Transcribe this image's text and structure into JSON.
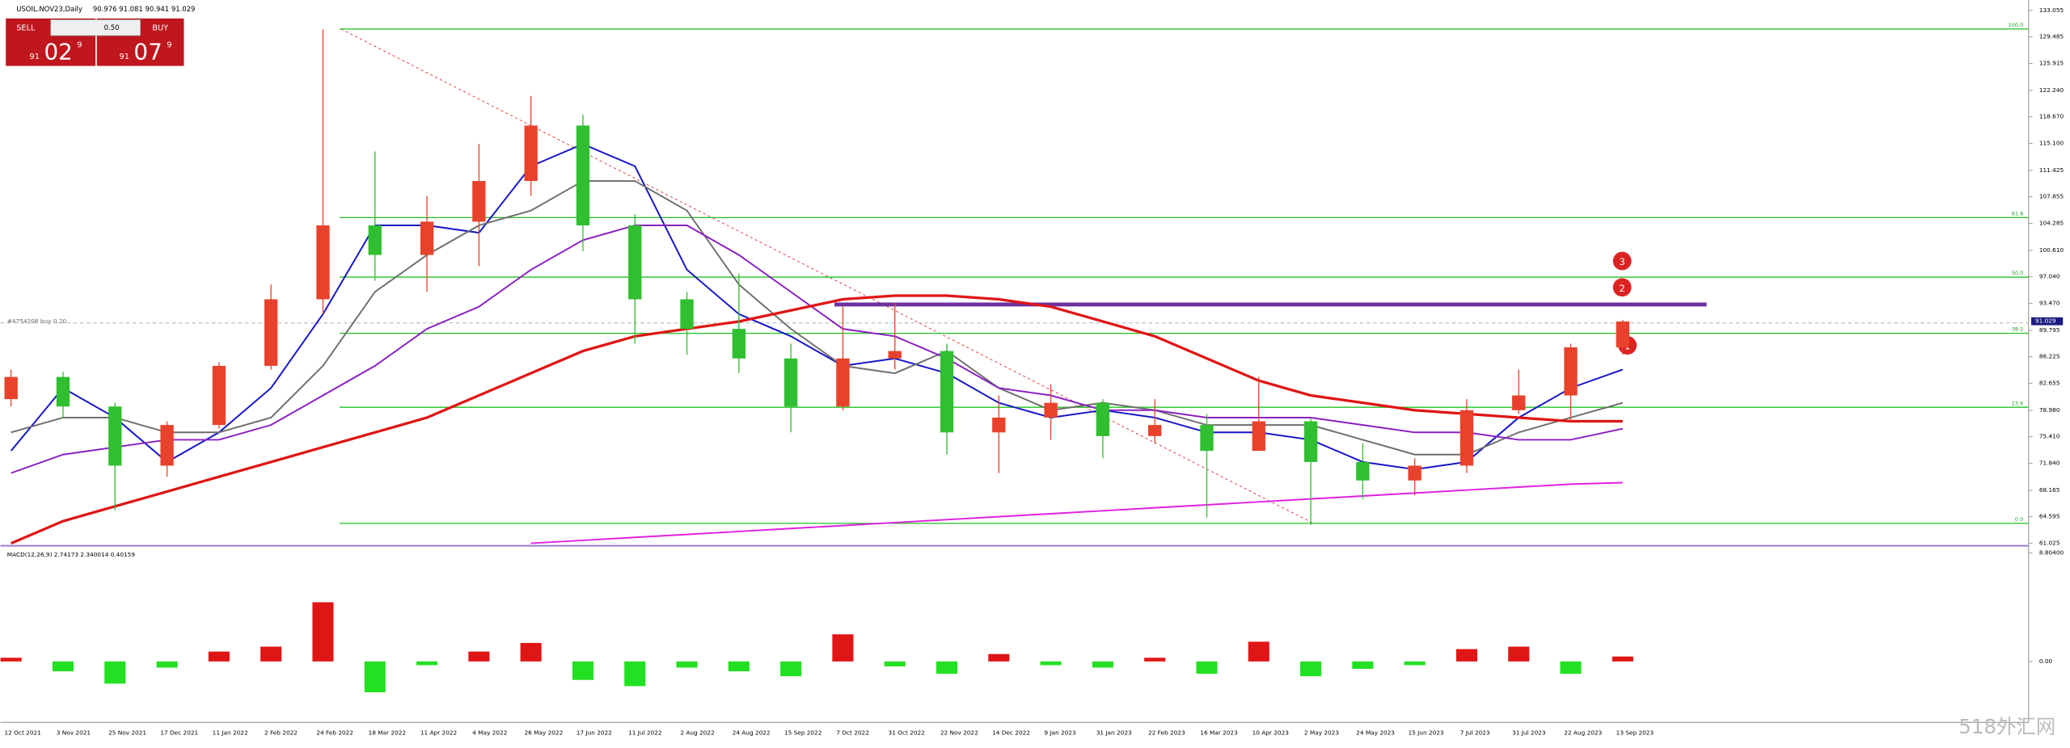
{
  "header": {
    "symbol": "USOIL.NOV23,Daily",
    "ohlc": "90.976 91.081 90.941 91.029",
    "price_label": "91.029"
  },
  "trade_panel": {
    "sell": "SELL",
    "buy": "BUY",
    "lot": "0.50",
    "bid_big": "91",
    "bid_main": "02",
    "bid_sup": "9",
    "ask_big": "91",
    "ask_main": "07",
    "ask_sup": "9"
  },
  "order_line": "#4754208 buy 0.20",
  "markers": [
    "1",
    "2",
    "3"
  ],
  "watermark": "518外汇网",
  "chart_data": {
    "type": "candlestick",
    "categories": [
      "12 Oct 2021",
      "3 Nov 2021",
      "25 Nov 2021",
      "17 Dec 2021",
      "11 Jan 2022",
      "2 Feb 2022",
      "24 Feb 2022",
      "18 Mar 2022",
      "11 Apr 2022",
      "4 May 2022",
      "26 May 2022",
      "17 Jun 2022",
      "11 Jul 2022",
      "2 Aug 2022",
      "24 Aug 2022",
      "15 Sep 2022",
      "7 Oct 2022",
      "31 Oct 2022",
      "22 Nov 2022",
      "14 Dec 2022",
      "9 Jan 2023",
      "31 Jan 2023",
      "22 Feb 2023",
      "16 Mar 2023",
      "10 Apr 2023",
      "2 May 2023",
      "24 May 2023",
      "15 Jun 2023",
      "7 Jul 2023",
      "31 Jul 2023",
      "22 Aug 2023",
      "13 Sep 2023"
    ],
    "open": [
      80.5,
      83.5,
      79.5,
      71.5,
      77.0,
      85.0,
      94.0,
      104.0,
      100.0,
      104.5,
      110.0,
      117.5,
      104.0,
      94.0,
      90.0,
      86.0,
      79.5,
      86.0,
      87.0,
      76.0,
      78.0,
      80.0,
      75.5,
      77.0,
      73.5,
      77.5,
      72.0,
      69.5,
      71.5,
      79.0,
      81.0,
      87.5
    ],
    "high": [
      84.5,
      84.2,
      80.0,
      77.5,
      85.5,
      96.0,
      130.5,
      114.0,
      108.0,
      115.0,
      121.5,
      119.0,
      105.5,
      95.0,
      97.5,
      88.0,
      93.0,
      93.5,
      88.0,
      81.0,
      82.5,
      80.5,
      80.5,
      78.5,
      83.5,
      78.0,
      74.5,
      72.5,
      80.5,
      84.5,
      88.0,
      91.2
    ],
    "low": [
      79.5,
      78.0,
      65.5,
      70.0,
      76.5,
      84.5,
      92.0,
      96.5,
      95.0,
      98.5,
      108.0,
      100.5,
      88.0,
      86.5,
      84.0,
      76.0,
      79.0,
      84.5,
      73.0,
      70.5,
      75.0,
      72.5,
      74.5,
      64.5,
      74.0,
      63.5,
      67.0,
      67.5,
      70.5,
      78.5,
      77.5,
      86.5
    ],
    "close": [
      83.5,
      79.5,
      71.5,
      77.0,
      85.0,
      94.0,
      104.0,
      100.0,
      104.5,
      110.0,
      117.5,
      104.0,
      94.0,
      90.0,
      86.0,
      79.5,
      86.0,
      87.0,
      76.0,
      78.0,
      80.0,
      75.5,
      77.0,
      73.5,
      77.5,
      72.0,
      69.5,
      71.5,
      79.0,
      81.0,
      87.5,
      91.0
    ],
    "up_color": "#e8412c",
    "down_color": "#2fbf30",
    "series": [
      {
        "color": "#1515c8",
        "values": [
          73.5,
          82,
          78,
          72,
          76,
          82,
          92,
          104,
          104,
          103,
          112,
          115,
          112,
          98,
          92,
          89,
          85,
          86,
          84,
          80,
          78,
          79,
          78,
          76,
          76,
          75,
          72,
          71,
          72,
          78,
          82,
          84.5
        ]
      },
      {
        "color": "#6e6e6e",
        "values": [
          76,
          78,
          78,
          76,
          76,
          78,
          85,
          95,
          100,
          104,
          106,
          110,
          110,
          106,
          96,
          90,
          85,
          84,
          87,
          82,
          79,
          80,
          79,
          77,
          77,
          77,
          75,
          73,
          73,
          76,
          78,
          80
        ]
      },
      {
        "color": "#8a1fc0",
        "values": [
          70.5,
          73,
          74,
          75,
          75,
          77,
          81,
          85,
          90,
          93,
          98,
          102,
          104,
          104,
          100,
          95,
          90,
          89,
          86,
          82,
          81,
          79,
          79,
          78,
          78,
          78,
          77,
          76,
          76,
          75,
          75,
          76.5
        ]
      },
      {
        "color": "#e01515",
        "values": [
          61,
          64,
          66,
          68,
          70,
          72,
          74,
          76,
          78,
          81,
          84,
          87,
          89,
          90,
          91,
          92.5,
          94,
          94.5,
          94.5,
          94,
          93,
          91,
          89,
          86,
          83,
          81,
          80,
          79,
          78.5,
          78,
          77.5,
          77.5
        ]
      },
      {
        "color": "#e020e0",
        "values": [
          null,
          null,
          null,
          null,
          null,
          null,
          null,
          null,
          null,
          null,
          61.0,
          61.4,
          61.8,
          62.2,
          62.6,
          63.0,
          63.4,
          63.8,
          64.2,
          64.6,
          65.0,
          65.4,
          65.8,
          66.2,
          66.6,
          67.0,
          67.4,
          67.8,
          68.2,
          68.6,
          69.0,
          69.2
        ]
      }
    ],
    "fib_levels": [
      {
        "label": "100.0",
        "price": 130.56
      },
      {
        "label": "61.8",
        "price": 105.05
      },
      {
        "label": "50.0",
        "price": 97.0
      },
      {
        "label": "38.2",
        "price": 89.4
      },
      {
        "label": "23.6",
        "price": 79.4
      },
      {
        "label": "0.0",
        "price": 63.7
      }
    ],
    "resistance": 93.3,
    "order_price": 90.8,
    "last_price": 91.029,
    "ylim": [
      60.85,
      134.48
    ],
    "yticks": [
      133.055,
      129.485,
      125.915,
      {
        "value": 122.24,
        "label": "122.240"
      },
      {
        "value": 118.67,
        "label": "118.670"
      },
      {
        "value": 115.1,
        "label": "115.100"
      },
      111.425,
      107.855,
      104.285,
      {
        "value": 100.61,
        "label": "100.610"
      },
      {
        "value": 97.04,
        "label": "97.040"
      },
      {
        "value": 93.47,
        "label": "93.470"
      },
      89.795,
      86.225,
      82.655,
      {
        "value": 78.98,
        "label": "78.980"
      },
      {
        "value": 75.41,
        "label": "75.410"
      },
      {
        "value": 71.84,
        "label": "71.840"
      },
      68.165,
      64.595,
      61.025
    ],
    "macd": {
      "title": "MACD(12,26,9) 2.74173 2.340014 0.40159",
      "values": [
        0.3,
        -0.8,
        -1.8,
        -0.5,
        0.8,
        1.2,
        4.8,
        -2.5,
        -0.3,
        0.8,
        1.5,
        -1.5,
        -2.0,
        -0.5,
        -0.8,
        -1.2,
        2.2,
        -0.4,
        -1.0,
        0.6,
        -0.3,
        -0.5,
        0.3,
        -1.0,
        1.6,
        -1.2,
        -0.6,
        -0.3,
        1.0,
        1.2,
        -1.0,
        0.4
      ],
      "pos_color": "#e01515",
      "neg_color": "#22e022",
      "ylim": [
        -4.94,
        9.17
      ],
      "yticks": [
        {
          "value": 8.804,
          "label": "8.80400"
        },
        {
          "value": 0,
          "label": "0.00"
        }
      ]
    }
  }
}
